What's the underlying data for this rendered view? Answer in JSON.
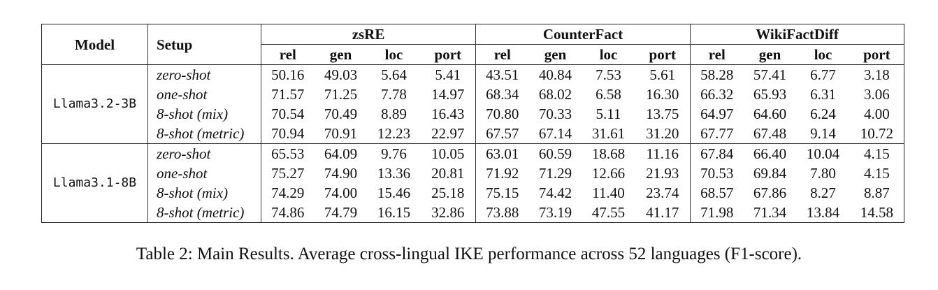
{
  "table": {
    "header": {
      "model": "Model",
      "setup": "Setup",
      "groups": [
        "zsRE",
        "CounterFact",
        "WikiFactDiff"
      ],
      "metrics": [
        "rel",
        "gen",
        "loc",
        "port"
      ]
    },
    "models": [
      {
        "name": "Llama3.2-3B",
        "rows": [
          {
            "setup": "zero-shot",
            "values": [
              "50.16",
              "49.03",
              "5.64",
              "5.41",
              "43.51",
              "40.84",
              "7.53",
              "5.61",
              "58.28",
              "57.41",
              "6.77",
              "3.18"
            ]
          },
          {
            "setup": "one-shot",
            "values": [
              "71.57",
              "71.25",
              "7.78",
              "14.97",
              "68.34",
              "68.02",
              "6.58",
              "16.30",
              "66.32",
              "65.93",
              "6.31",
              "3.06"
            ]
          },
          {
            "setup": "8-shot (mix)",
            "values": [
              "70.54",
              "70.49",
              "8.89",
              "16.43",
              "70.80",
              "70.33",
              "5.11",
              "13.75",
              "64.97",
              "64.60",
              "6.24",
              "4.00"
            ]
          },
          {
            "setup": "8-shot (metric)",
            "values": [
              "70.94",
              "70.91",
              "12.23",
              "22.97",
              "67.57",
              "67.14",
              "31.61",
              "31.20",
              "67.77",
              "67.48",
              "9.14",
              "10.72"
            ]
          }
        ]
      },
      {
        "name": "Llama3.1-8B",
        "rows": [
          {
            "setup": "zero-shot",
            "values": [
              "65.53",
              "64.09",
              "9.76",
              "10.05",
              "63.01",
              "60.59",
              "18.68",
              "11.16",
              "67.84",
              "66.40",
              "10.04",
              "4.15"
            ]
          },
          {
            "setup": "one-shot",
            "values": [
              "75.27",
              "74.90",
              "13.36",
              "20.81",
              "71.92",
              "71.29",
              "12.66",
              "21.93",
              "70.53",
              "69.84",
              "7.80",
              "4.15"
            ]
          },
          {
            "setup": "8-shot (mix)",
            "values": [
              "74.29",
              "74.00",
              "15.46",
              "25.18",
              "75.15",
              "74.42",
              "11.40",
              "23.74",
              "68.57",
              "67.86",
              "8.27",
              "8.87"
            ]
          },
          {
            "setup": "8-shot (metric)",
            "values": [
              "74.86",
              "74.79",
              "16.15",
              "32.86",
              "73.88",
              "73.19",
              "47.55",
              "41.17",
              "71.98",
              "71.34",
              "13.84",
              "14.58"
            ]
          }
        ]
      }
    ]
  },
  "caption": "Table 2: Main Results. Average cross-lingual IKE performance across 52 languages (F1-score)."
}
